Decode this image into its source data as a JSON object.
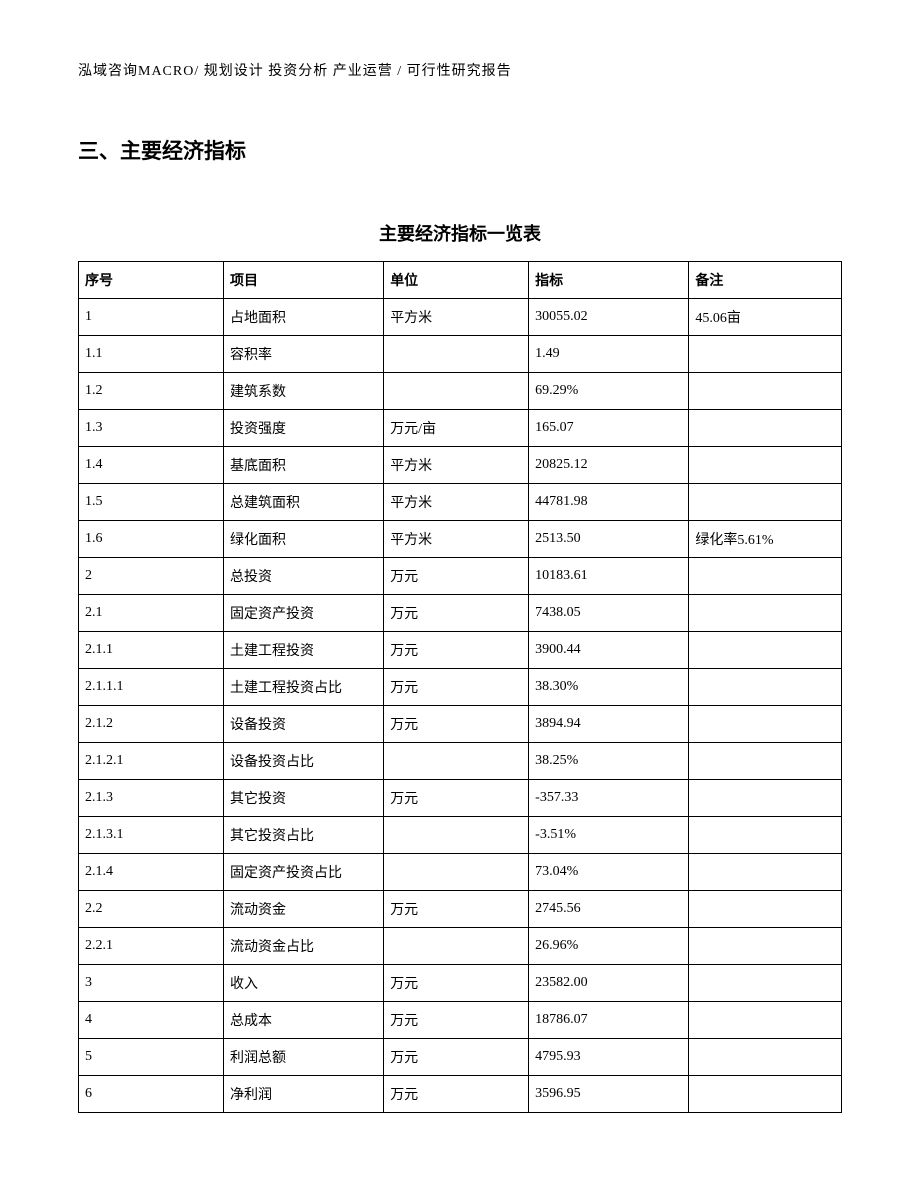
{
  "header": "泓域咨询MACRO/ 规划设计  投资分析  产业运营 / 可行性研究报告",
  "section_title": "三、主要经济指标",
  "table_title": "主要经济指标一览表",
  "table": {
    "columns": [
      "序号",
      "项目",
      "单位",
      "指标",
      "备注"
    ],
    "rows": [
      [
        "1",
        "占地面积",
        "平方米",
        "30055.02",
        "45.06亩"
      ],
      [
        "1.1",
        "容积率",
        "",
        "1.49",
        ""
      ],
      [
        "1.2",
        "建筑系数",
        "",
        "69.29%",
        ""
      ],
      [
        "1.3",
        "投资强度",
        "万元/亩",
        "165.07",
        ""
      ],
      [
        "1.4",
        "基底面积",
        "平方米",
        "20825.12",
        ""
      ],
      [
        "1.5",
        "总建筑面积",
        "平方米",
        "44781.98",
        ""
      ],
      [
        "1.6",
        "绿化面积",
        "平方米",
        "2513.50",
        "绿化率5.61%"
      ],
      [
        "2",
        "总投资",
        "万元",
        "10183.61",
        ""
      ],
      [
        "2.1",
        "固定资产投资",
        "万元",
        "7438.05",
        ""
      ],
      [
        "2.1.1",
        "土建工程投资",
        "万元",
        "3900.44",
        ""
      ],
      [
        "2.1.1.1",
        "土建工程投资占比",
        "万元",
        "38.30%",
        ""
      ],
      [
        "2.1.2",
        "设备投资",
        "万元",
        "3894.94",
        ""
      ],
      [
        "2.1.2.1",
        "设备投资占比",
        "",
        "38.25%",
        ""
      ],
      [
        "2.1.3",
        "其它投资",
        "万元",
        "-357.33",
        ""
      ],
      [
        "2.1.3.1",
        "其它投资占比",
        "",
        "-3.51%",
        ""
      ],
      [
        "2.1.4",
        "固定资产投资占比",
        "",
        "73.04%",
        ""
      ],
      [
        "2.2",
        "流动资金",
        "万元",
        "2745.56",
        ""
      ],
      [
        "2.2.1",
        "流动资金占比",
        "",
        "26.96%",
        ""
      ],
      [
        "3",
        "收入",
        "万元",
        "23582.00",
        ""
      ],
      [
        "4",
        "总成本",
        "万元",
        "18786.07",
        ""
      ],
      [
        "5",
        "利润总额",
        "万元",
        "4795.93",
        ""
      ],
      [
        "6",
        "净利润",
        "万元",
        "3596.95",
        ""
      ]
    ]
  }
}
